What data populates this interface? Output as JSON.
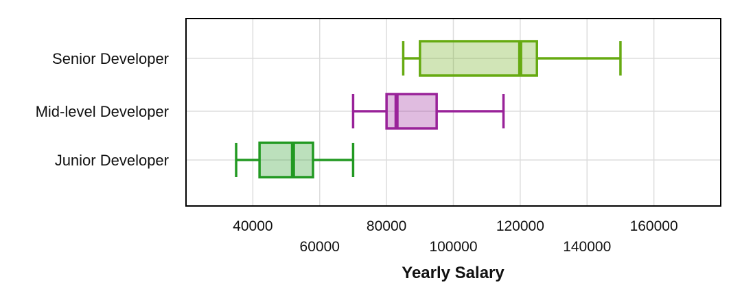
{
  "chart_data": {
    "type": "boxplot",
    "orientation": "horizontal",
    "title": "",
    "xlabel": "Yearly Salary",
    "ylabel": "",
    "xlim": [
      20000,
      180000
    ],
    "grid": true,
    "legend": "none",
    "x_ticks_row1": [
      "40000",
      "80000",
      "120000",
      "160000"
    ],
    "x_ticks_row2": [
      "60000",
      "100000",
      "140000"
    ],
    "categories": [
      "Senior Developer",
      "Mid-level Developer",
      "Junior Developer"
    ],
    "series": [
      {
        "category": "Senior Developer",
        "whisker_low": 85000,
        "q1": 90000,
        "median": 120000,
        "q3": 125000,
        "whisker_high": 150000,
        "color": "#66aa11"
      },
      {
        "category": "Mid-level Developer",
        "whisker_low": 70000,
        "q1": 80000,
        "median": 83000,
        "q3": 95000,
        "whisker_high": 115000,
        "color": "#992299"
      },
      {
        "category": "Junior Developer",
        "whisker_low": 35000,
        "q1": 42000,
        "median": 52000,
        "q3": 58000,
        "whisker_high": 70000,
        "color": "#229922"
      }
    ]
  }
}
